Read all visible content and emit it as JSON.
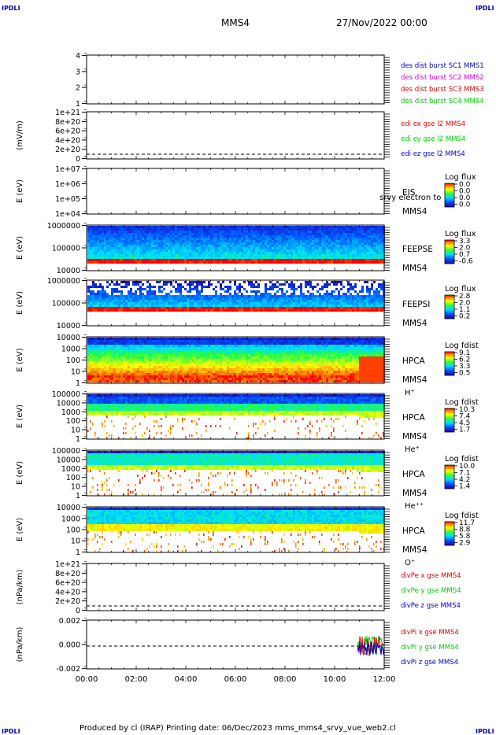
{
  "header": {
    "corner_label": "IPDLI",
    "spacecraft": "MMS4",
    "datetime": "27/Nov/2022 00:00"
  },
  "footer": {
    "text": "Produced by cl (IRAP)    Printing date: 06/Dec/2023    mms_mms4_srvy_vue_web2.cl"
  },
  "colors": {
    "blue": "#0000cc",
    "green": "#00cc00",
    "red": "#dd0000",
    "magenta": "#dd00dd"
  },
  "chart_data": [
    {
      "type": "line",
      "id": "burst",
      "yticks": [
        "1",
        "2",
        "3",
        "4"
      ],
      "ylim": [
        0.6,
        4.4
      ],
      "legend": [
        {
          "text": "des dist burst SC1 MMS1",
          "color": "#0000cc"
        },
        {
          "text": "des dist burst SC2 MMS2",
          "color": "#dd00dd"
        },
        {
          "text": "des dist burst SC3 MMS3",
          "color": "#dd0000"
        },
        {
          "text": "des dist burst SC4 MMS4",
          "color": "#00cc00"
        }
      ]
    },
    {
      "type": "line",
      "id": "edi",
      "ylabel": "(mV/m)",
      "yticks": [
        "0",
        "2e+20",
        "4e+20",
        "6e+20",
        "8e+20",
        "1e+21"
      ],
      "ylim": [
        -0.3,
        1.1
      ],
      "zero_line": true,
      "legend": [
        {
          "text": "edi ex gse l2 MMS4",
          "color": "#dd0000"
        },
        {
          "text": "edi ey gse l2 MMS4",
          "color": "#00cc00"
        },
        {
          "text": "edi ez gse l2 MMS4",
          "color": "#0000cc"
        }
      ]
    },
    {
      "type": "heatmap",
      "id": "eis",
      "ylabel": "E (eV)",
      "yticks": [
        "1e+04",
        "1e+05",
        "1e+06",
        "1e+07"
      ],
      "ylog": [
        4,
        7
      ],
      "instrument": "EIS",
      "species": "",
      "spacecraft": "MMS4",
      "overlay_text": "srvy electron to",
      "cbar_title": "Log flux",
      "cbar_ticks": [
        "0.0",
        "0.0",
        "0.0",
        "0.0"
      ]
    },
    {
      "type": "heatmap",
      "id": "feepse",
      "ylabel": "E (eV)",
      "yticks": [
        "10000",
        "100000",
        "1000000"
      ],
      "ylog": [
        4,
        6
      ],
      "instrument": "FEEPSE",
      "species": "",
      "spacecraft": "MMS4",
      "cbar_title": "Log flux",
      "cbar_ticks": [
        "3.3",
        "2.0",
        "0.7",
        "-0.6"
      ]
    },
    {
      "type": "heatmap",
      "id": "feepsi",
      "ylabel": "E (eV)",
      "yticks": [
        "10000",
        "100000",
        "1000000"
      ],
      "ylog": [
        4,
        6
      ],
      "instrument": "FEEPSI",
      "species": "",
      "spacecraft": "MMS4",
      "cbar_title": "Log flux",
      "cbar_ticks": [
        "2.8",
        "2.0",
        "1.1",
        "0.2"
      ]
    },
    {
      "type": "heatmap",
      "id": "hpca_h",
      "ylabel": "E (eV)",
      "yticks": [
        "1",
        "10",
        "100",
        "1000",
        "10000"
      ],
      "ylog": [
        0,
        4.5
      ],
      "instrument": "HPCA",
      "species": "H⁺",
      "spacecraft": "MMS4",
      "cbar_title": "Log fdist",
      "cbar_ticks": [
        "9.1",
        "6.2",
        "3.3",
        "0.5"
      ]
    },
    {
      "type": "heatmap",
      "id": "hpca_he",
      "ylabel": "E (eV)",
      "yticks": [
        "1",
        "10",
        "100",
        "1000",
        "10000",
        "100000"
      ],
      "ylog": [
        0,
        5
      ],
      "instrument": "HPCA",
      "species": "He⁺",
      "spacecraft": "MMS4",
      "cbar_title": "Log fdist",
      "cbar_ticks": [
        "10.3",
        "7.4",
        "4.5",
        "1.7"
      ]
    },
    {
      "type": "heatmap",
      "id": "hpca_hepp",
      "ylabel": "E (eV)",
      "yticks": [
        "1",
        "10",
        "100",
        "1000",
        "10000",
        "100000"
      ],
      "ylog": [
        0,
        5
      ],
      "instrument": "HPCA",
      "species": "He⁺⁺",
      "spacecraft": "MMS4",
      "cbar_title": "Log fdist",
      "cbar_ticks": [
        "10.0",
        "7.1",
        "4.2",
        "1.4"
      ]
    },
    {
      "type": "heatmap",
      "id": "hpca_o",
      "ylabel": "E (eV)",
      "yticks": [
        "1",
        "10",
        "100",
        "1000",
        "10000"
      ],
      "ylog": [
        0,
        4.3
      ],
      "instrument": "HPCA",
      "species": "O⁺",
      "spacecraft": "MMS4",
      "cbar_title": "Log fdist",
      "cbar_ticks": [
        "11.7",
        "8.8",
        "5.8",
        "2.9"
      ]
    },
    {
      "type": "line",
      "id": "divpe",
      "ylabel": "(nPa/km)",
      "yticks": [
        "0",
        "2e+20",
        "4e+20",
        "6e+20",
        "8e+20",
        "1e+21"
      ],
      "ylim": [
        -0.2,
        1.1
      ],
      "zero_line": true,
      "legend": [
        {
          "text": "divPe x gse MMS4",
          "color": "#dd0000"
        },
        {
          "text": "divPe y gse MMS4",
          "color": "#00cc00"
        },
        {
          "text": "divPe z gse MMS4",
          "color": "#0000cc"
        }
      ]
    },
    {
      "type": "line",
      "id": "divpi",
      "ylabel": "(nPa/km)",
      "yticks": [
        "-0.002",
        "0.000",
        "0.002"
      ],
      "ylim": [
        -0.0033,
        0.0033
      ],
      "zero_line": true,
      "data_start_hour": 10.92,
      "legend": [
        {
          "text": "divPi x gse MMS4",
          "color": "#dd0000"
        },
        {
          "text": "divPi y gse MMS4",
          "color": "#00cc00"
        },
        {
          "text": "divPi z gse MMS4",
          "color": "#0000cc"
        }
      ]
    }
  ],
  "xaxis": {
    "ticks": [
      "00:00",
      "02:00",
      "04:00",
      "06:00",
      "08:00",
      "10:00",
      "12:00"
    ],
    "xlim": [
      0,
      12
    ]
  }
}
